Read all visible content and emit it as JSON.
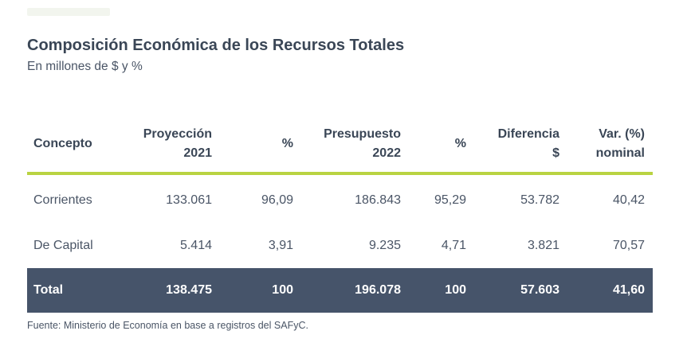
{
  "title": "Composición Económica de los Recursos Totales",
  "subtitle": "En millones de $ y %",
  "table": {
    "headers": [
      {
        "line1": "Concepto",
        "line2": ""
      },
      {
        "line1": "Proyección",
        "line2": "2021"
      },
      {
        "line1": "%",
        "line2": ""
      },
      {
        "line1": "Presupuesto",
        "line2": "2022"
      },
      {
        "line1": "%",
        "line2": ""
      },
      {
        "line1": "Diferencia",
        "line2": "$"
      },
      {
        "line1": "Var. (%)",
        "line2": "nominal"
      }
    ],
    "rows": [
      [
        "Corrientes",
        "133.061",
        "96,09",
        "186.843",
        "95,29",
        "53.782",
        "40,42"
      ],
      [
        "De Capital",
        "5.414",
        "3,91",
        "9.235",
        "4,71",
        "3.821",
        "70,57"
      ]
    ],
    "total": [
      "Total",
      "138.475",
      "100",
      "196.078",
      "100",
      "57.603",
      "41,60"
    ]
  },
  "source": "Fuente: Ministerio de Economía en base a registros del SAFyC.",
  "colors": {
    "header_rule": "#b9d341",
    "total_row_bg": "#46546a",
    "text": "#3a4656"
  }
}
